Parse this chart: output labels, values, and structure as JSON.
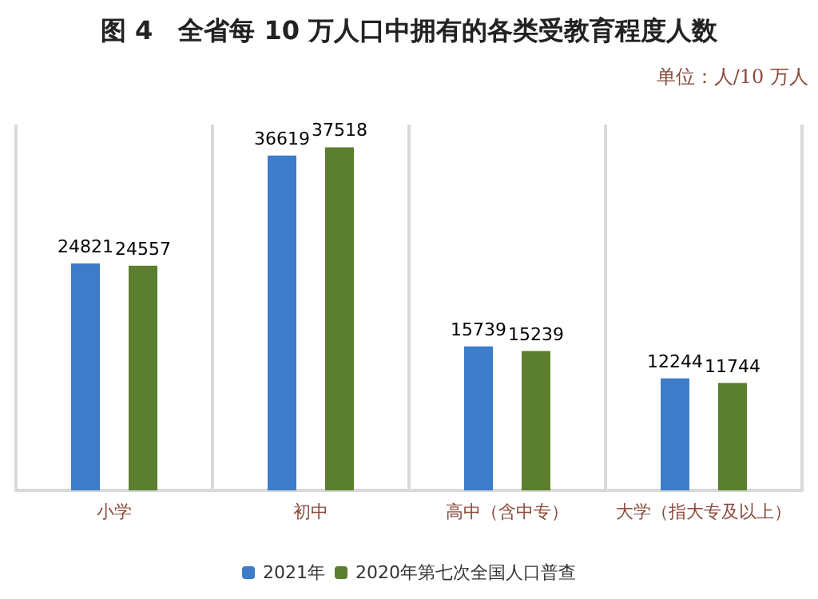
{
  "chart_data": {
    "type": "bar",
    "title": "图 4　全省每 10 万人口中拥有的各类受教育程度人数",
    "annotations": [
      "单位：人/10 万人"
    ],
    "categories": [
      "小学",
      "初中",
      "高中（含中专）",
      "大学（指大专及以上）"
    ],
    "series": [
      {
        "name": "2021年",
        "color": "#3d7cc9",
        "values": [
          24821,
          36619,
          15739,
          12244
        ]
      },
      {
        "name": "2020年第七次全国人口普查",
        "color": "#5b7f2f",
        "values": [
          24557,
          37518,
          15239,
          11744
        ]
      }
    ],
    "data_labels": true,
    "grid": "x",
    "legend": "bottom"
  }
}
